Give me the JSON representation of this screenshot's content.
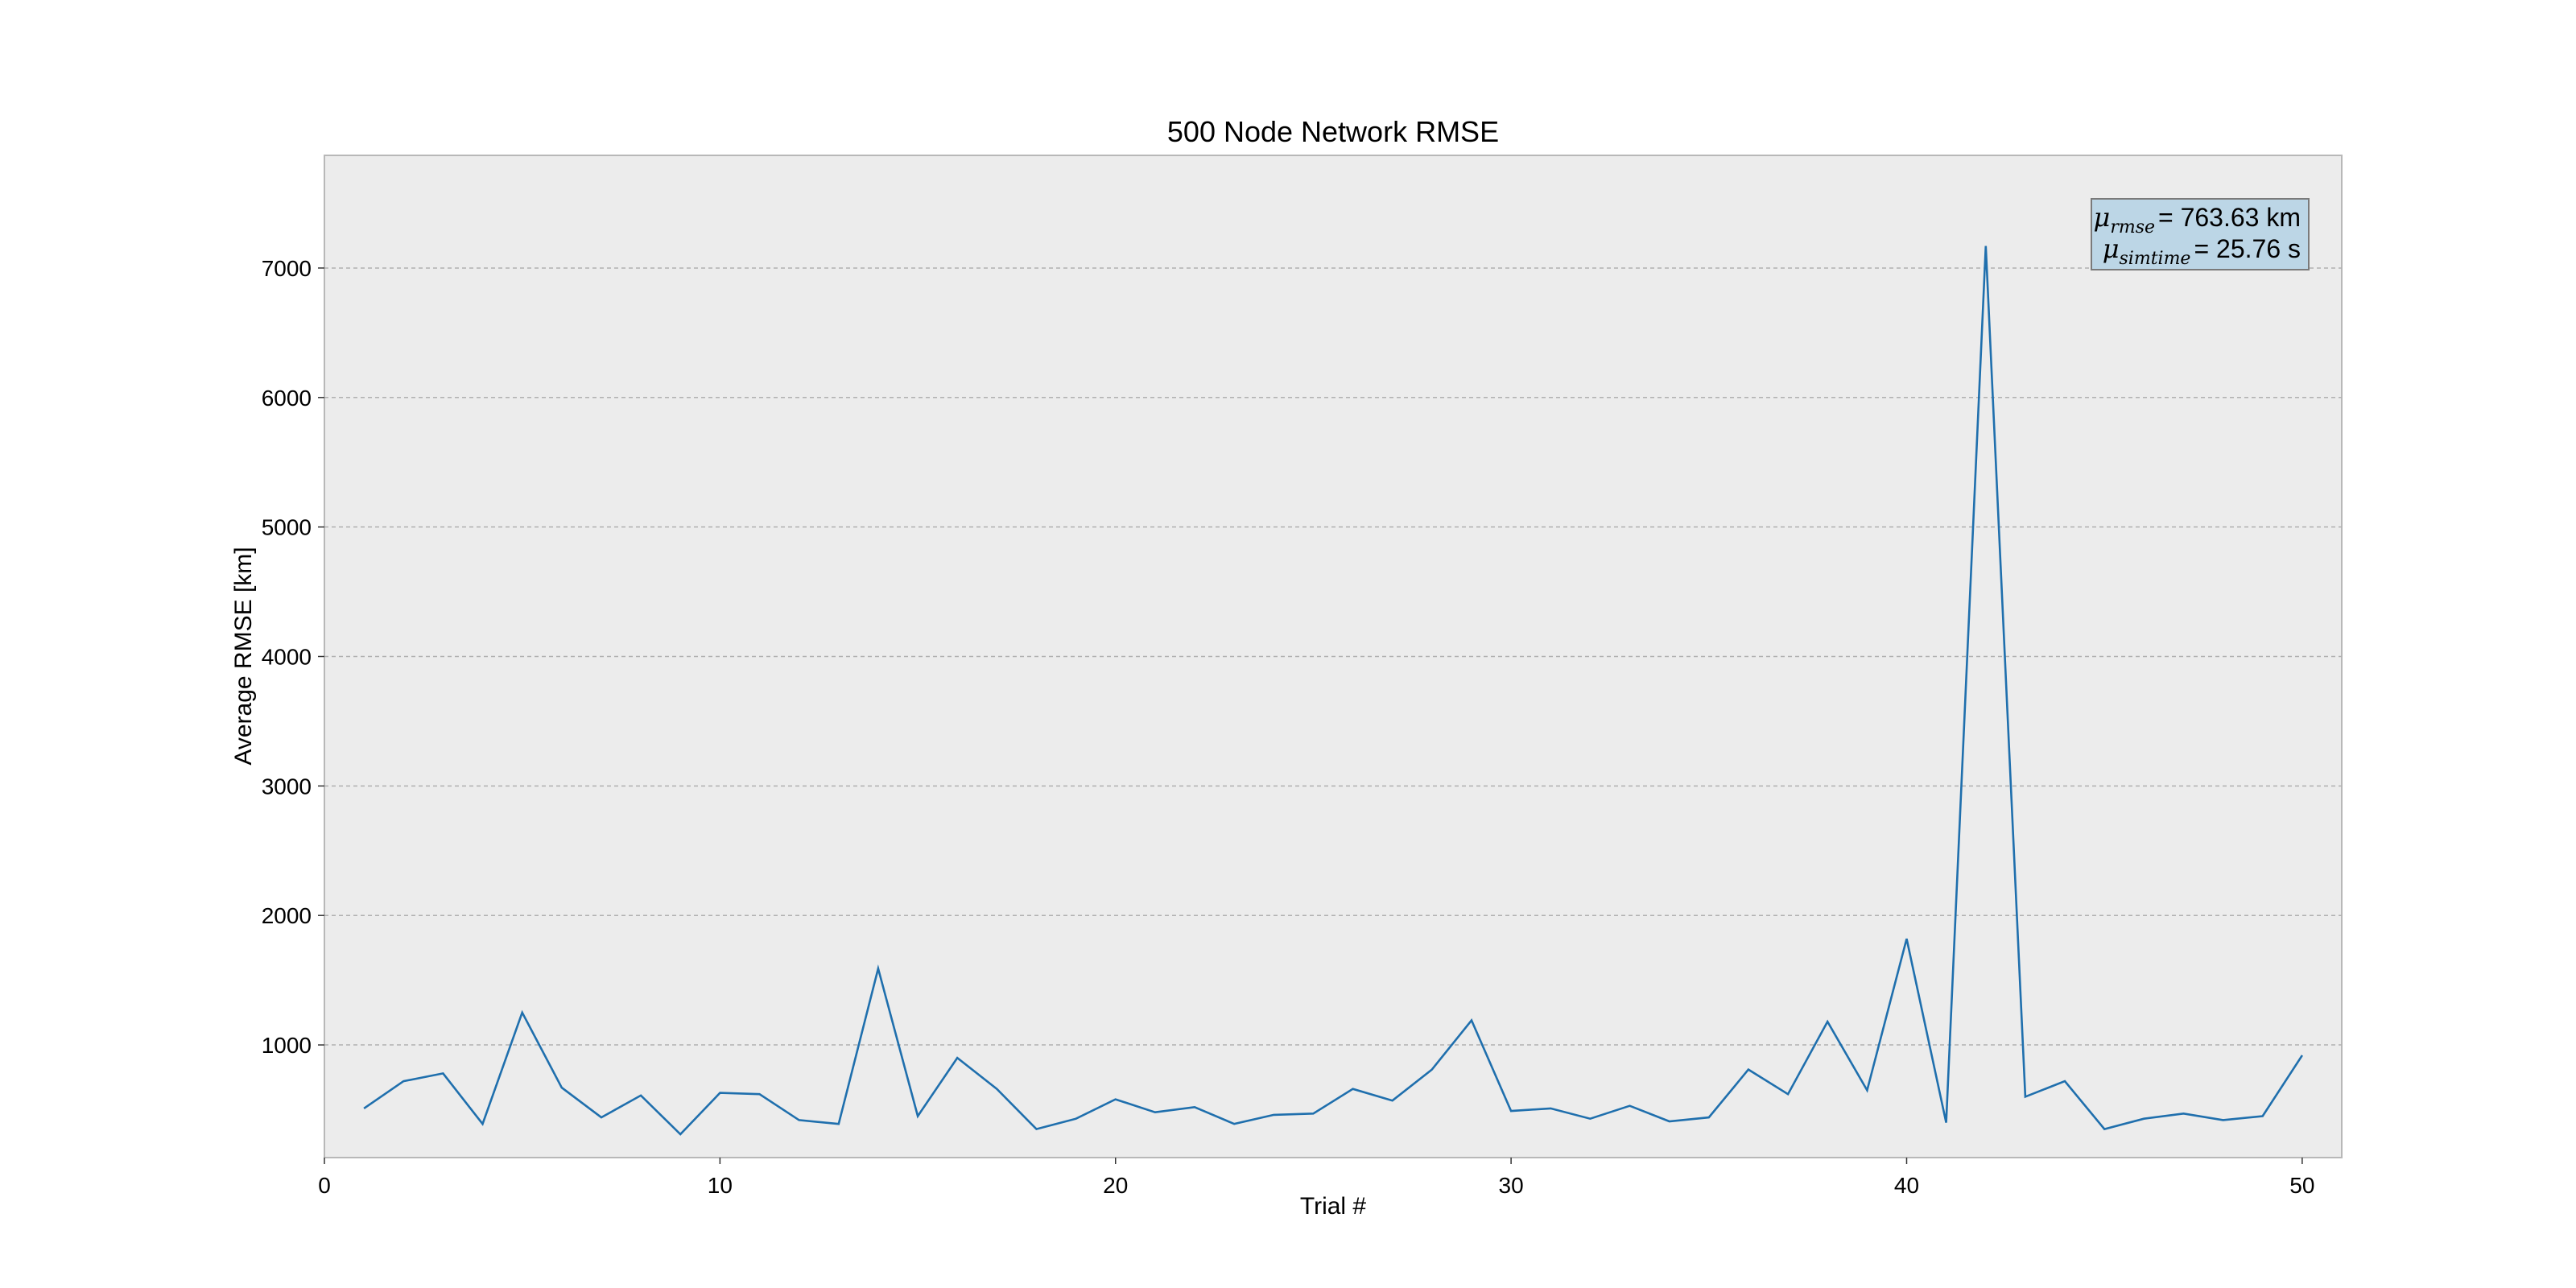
{
  "chart_data": {
    "type": "line",
    "title": "500 Node Network RMSE",
    "xlabel": "Trial #",
    "ylabel": "Average RMSE [km]",
    "xlim": [
      0,
      51
    ],
    "ylim": [
      130,
      7870
    ],
    "xticks": [
      0,
      10,
      20,
      30,
      40,
      50
    ],
    "yticks": [
      1000,
      2000,
      3000,
      4000,
      5000,
      6000,
      7000
    ],
    "grid": "y",
    "colors": {
      "line": "#1f6fad",
      "plot_bg": "#ececec",
      "grid": "#b0b0b0",
      "legend_bg": "#bcd6e6"
    },
    "series": [
      {
        "x": [
          1,
          2,
          3,
          4,
          5,
          6,
          7,
          8,
          9,
          10,
          11,
          12,
          13,
          14,
          15,
          16,
          17,
          18,
          19,
          20,
          21,
          22,
          23,
          24,
          25,
          26,
          27,
          28,
          29,
          30,
          31,
          32,
          33,
          34,
          35,
          36,
          37,
          38,
          39,
          40,
          41,
          42,
          43,
          44,
          45,
          46,
          47,
          48,
          49,
          50
        ],
        "values": [
          510,
          720,
          780,
          390,
          1250,
          670,
          440,
          610,
          310,
          630,
          620,
          420,
          390,
          1590,
          450,
          900,
          660,
          350,
          430,
          580,
          480,
          520,
          390,
          460,
          470,
          660,
          570,
          810,
          1190,
          490,
          510,
          430,
          530,
          410,
          440,
          810,
          620,
          1180,
          650,
          1820,
          400,
          7170,
          600,
          720,
          350,
          430,
          470,
          420,
          450,
          920
        ]
      }
    ],
    "annotation": {
      "position": "top-right",
      "lines": [
        {
          "symbol": "μ",
          "subscript": "rmse",
          "value": "= 763.63 km"
        },
        {
          "symbol": "μ",
          "subscript": "simtime",
          "value": "= 25.76 s"
        }
      ]
    }
  }
}
